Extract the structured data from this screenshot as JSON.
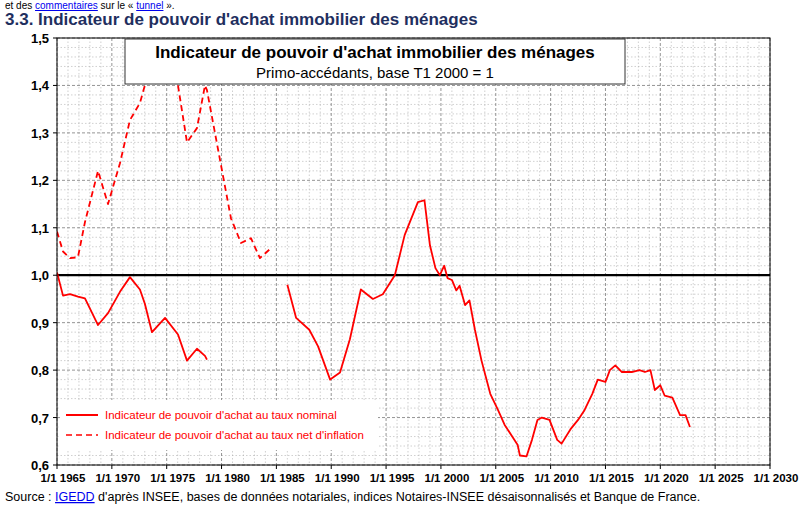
{
  "page": {
    "intro": [
      {
        "text": "et des "
      },
      {
        "text": "commentaires",
        "link": true
      },
      {
        "text": " sur le « "
      },
      {
        "text": "tunnel",
        "link": true
      },
      {
        "text": " »."
      }
    ],
    "header": "3.3. Indicateur de pouvoir d'achat immobilier des ménages",
    "source": [
      {
        "text": "Source : "
      },
      {
        "text": "IGEDD",
        "link": true
      },
      {
        "text": " d'après INSEE, bases de données notariales, indices Notaires-INSEE désaisonnalisés et Banque de France."
      }
    ]
  },
  "chart_data": {
    "type": "line",
    "title": "Indicateur de pouvoir d'achat immobilier des ménages",
    "subtitle": "Primo-accédants, base T1 2000 = 1",
    "x": [
      1965.0,
      1965.55,
      1966.19,
      1966.91,
      1967.55,
      1968.74,
      1969.65,
      1970.74,
      1971.65,
      1972.56,
      1973.01,
      1973.66,
      1974.85,
      1976.03,
      1976.85,
      1977.76,
      1978.49,
      1978.67,
      1980.86,
      1981.77,
      1982.68,
      1983.5,
      1984.41,
      1986.0,
      1986.8,
      1988.0,
      1988.8,
      1989.9,
      1990.8,
      1991.7,
      1992.7,
      1993.8,
      1994.7,
      1995.8,
      1996.7,
      1997.9,
      1998.5,
      1999.0,
      1999.5,
      1999.9,
      2000.3,
      2000.6,
      2001.0,
      2001.4,
      2001.7,
      2002.2,
      2002.6,
      2003.1,
      2003.7,
      2004.5,
      2005.2,
      2005.8,
      2006.5,
      2007.0,
      2007.2,
      2007.8,
      2008.3,
      2008.8,
      2009.2,
      2009.9,
      2010.6,
      2011.0,
      2011.8,
      2012.5,
      2013.1,
      2013.8,
      2014.3,
      2015.0,
      2015.4,
      2015.9,
      2016.5,
      2017.4,
      2018.1,
      2018.6,
      2019.1,
      2019.5,
      2020.0,
      2020.4,
      2021.1,
      2021.8,
      2022.3,
      2022.7
    ],
    "series": [
      {
        "name": "Indicateur de pouvoir d'achat au taux nominal",
        "color": "#ff0000",
        "line_style": "solid",
        "values": [
          1.006,
          0.957,
          0.96,
          0.955,
          0.951,
          0.895,
          0.92,
          0.965,
          0.996,
          0.97,
          0.94,
          0.88,
          0.91,
          0.875,
          0.82,
          0.845,
          0.83,
          0.822,
          null,
          null,
          null,
          null,
          null,
          0.98,
          0.91,
          0.885,
          0.85,
          0.78,
          0.795,
          0.865,
          0.97,
          0.95,
          0.96,
          1.0,
          1.085,
          1.154,
          1.158,
          1.063,
          1.015,
          1.0,
          1.02,
          0.994,
          0.99,
          0.968,
          0.978,
          0.937,
          0.947,
          0.885,
          0.82,
          0.75,
          0.716,
          0.685,
          0.66,
          0.642,
          0.62,
          0.618,
          0.653,
          0.695,
          0.7,
          0.695,
          0.653,
          0.645,
          0.675,
          0.695,
          0.716,
          0.75,
          0.78,
          0.775,
          0.8,
          0.81,
          0.796,
          0.796,
          0.8,
          0.796,
          0.8,
          0.758,
          0.768,
          0.746,
          0.742,
          0.705,
          0.705,
          0.68
        ]
      },
      {
        "name": "Indicateur de pouvoir d'achat au taux net d'inflation",
        "color": "#ff0000",
        "line_style": "dashed",
        "values": [
          1.092,
          1.05,
          1.036,
          1.038,
          1.112,
          1.22,
          1.15,
          1.236,
          1.327,
          1.363,
          1.4,
          null,
          null,
          1.4,
          1.28,
          1.31,
          1.4,
          1.39,
          1.12,
          1.068,
          1.078,
          1.036,
          1.055,
          null,
          null,
          null,
          null,
          null,
          null,
          null,
          null,
          null,
          null,
          null,
          null,
          null,
          null,
          null,
          null,
          null,
          null,
          null,
          null,
          null,
          null,
          null,
          null,
          null,
          null,
          null,
          null,
          null,
          null,
          null,
          null,
          null,
          null,
          null,
          null,
          null,
          null,
          null,
          null,
          null,
          null,
          null,
          null,
          null,
          null,
          null,
          null,
          null,
          null,
          null,
          null,
          null,
          null,
          null,
          null,
          null,
          null,
          null
        ]
      }
    ],
    "baseline": 1,
    "xlim": [
      1965,
      2030
    ],
    "xticks": [
      {
        "value": 1965,
        "label": "1/1 1965"
      },
      {
        "value": 1970,
        "label": "1/1 1970"
      },
      {
        "value": 1975,
        "label": "1/1 1975"
      },
      {
        "value": 1980,
        "label": "1/1 1980"
      },
      {
        "value": 1985,
        "label": "1/1 1985"
      },
      {
        "value": 1990,
        "label": "1/1 1990"
      },
      {
        "value": 1995,
        "label": "1/1 1995"
      },
      {
        "value": 2000,
        "label": "1/1 2000"
      },
      {
        "value": 2005,
        "label": "1/1 2005"
      },
      {
        "value": 2010,
        "label": "1/1 2010"
      },
      {
        "value": 2015,
        "label": "1/1 2015"
      },
      {
        "value": 2020,
        "label": "1/1 2020"
      },
      {
        "value": 2025,
        "label": "1/1 2025"
      },
      {
        "value": 2030,
        "label": "1/1 2030"
      }
    ],
    "ylim": [
      0.6,
      1.5
    ],
    "yticks": [
      {
        "value": 0.6,
        "label": "0,6"
      },
      {
        "value": 0.7,
        "label": "0,7"
      },
      {
        "value": 0.8,
        "label": "0,8"
      },
      {
        "value": 0.9,
        "label": "0,9"
      },
      {
        "value": 1.0,
        "label": "1,0"
      },
      {
        "value": 1.1,
        "label": "1,1"
      },
      {
        "value": 1.2,
        "label": "1,2"
      },
      {
        "value": 1.3,
        "label": "1,3"
      },
      {
        "value": 1.4,
        "label": "1,4"
      },
      {
        "value": 1.5,
        "label": "1,5"
      }
    ],
    "grid": true,
    "legend": "lower left"
  }
}
